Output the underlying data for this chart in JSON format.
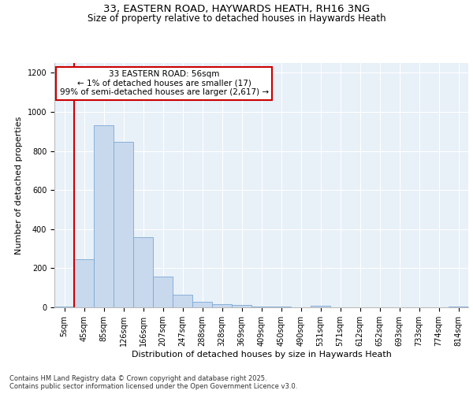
{
  "title_line1": "33, EASTERN ROAD, HAYWARDS HEATH, RH16 3NG",
  "title_line2": "Size of property relative to detached houses in Haywards Heath",
  "xlabel": "Distribution of detached houses by size in Haywards Heath",
  "ylabel": "Number of detached properties",
  "bar_labels": [
    "5sqm",
    "45sqm",
    "85sqm",
    "126sqm",
    "166sqm",
    "207sqm",
    "247sqm",
    "288sqm",
    "328sqm",
    "369sqm",
    "409sqm",
    "450sqm",
    "490sqm",
    "531sqm",
    "571sqm",
    "612sqm",
    "652sqm",
    "693sqm",
    "733sqm",
    "774sqm",
    "814sqm"
  ],
  "bar_values": [
    5,
    245,
    930,
    845,
    358,
    158,
    63,
    30,
    18,
    12,
    5,
    5,
    0,
    8,
    0,
    0,
    0,
    0,
    0,
    0,
    5
  ],
  "bar_color": "#c8d9ee",
  "bar_edge_color": "#7aa8d4",
  "vline_x_idx": 1,
  "vline_color": "#cc0000",
  "ylim": [
    0,
    1250
  ],
  "yticks": [
    0,
    200,
    400,
    600,
    800,
    1000,
    1200
  ],
  "annotation_text": "33 EASTERN ROAD: 56sqm\n← 1% of detached houses are smaller (17)\n99% of semi-detached houses are larger (2,617) →",
  "box_color": "#cc0000",
  "footer_text": "Contains HM Land Registry data © Crown copyright and database right 2025.\nContains public sector information licensed under the Open Government Licence v3.0.",
  "bg_color": "#e8f0f8",
  "grid_color": "#ffffff",
  "title1_fontsize": 9.5,
  "title2_fontsize": 8.5,
  "ylabel_fontsize": 8,
  "xlabel_fontsize": 8,
  "tick_fontsize": 7,
  "footer_fontsize": 6,
  "ann_fontsize": 7.5
}
